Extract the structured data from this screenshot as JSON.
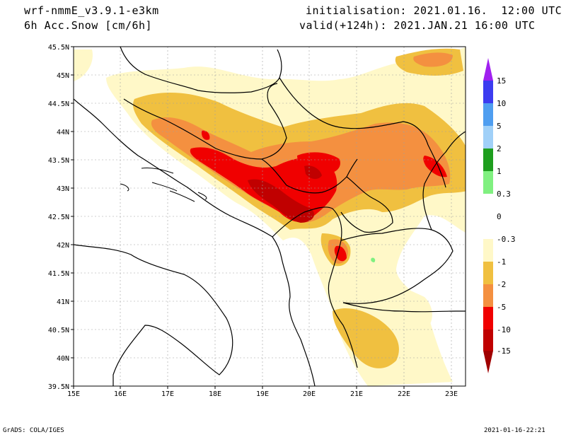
{
  "header": {
    "model": "wrf-nmmE_v3.9.1-e3km",
    "variable": "6h Acc.Snow [cm/6h]",
    "init": "initialisation: 2021.01.16.  12:00 UTC",
    "valid": "valid(+124h): 2021.JAN.21 16:00 UTC"
  },
  "footer": {
    "left": "GrADS: COLA/IGES",
    "right": "2021-01-16-22:21"
  },
  "map": {
    "lon_labels": [
      "15E",
      "16E",
      "17E",
      "18E",
      "19E",
      "20E",
      "21E",
      "22E",
      "23E"
    ],
    "lat_labels": [
      "39.5N",
      "40N",
      "40.5N",
      "41N",
      "41.5N",
      "42N",
      "42.5N",
      "43N",
      "43.5N",
      "44N",
      "44.5N",
      "45N",
      "45.5N"
    ],
    "lon_range": [
      15,
      23.3
    ],
    "lat_range": [
      39.5,
      45.5
    ],
    "grid": true
  },
  "colorbar": {
    "labels": [
      "15",
      "10",
      "5",
      "2",
      "1",
      "0.3",
      "0",
      "-0.3",
      "-1",
      "-2",
      "-5",
      "-10",
      "-15"
    ],
    "colors": [
      "#a020f0",
      "#3c3cf0",
      "#4f9ef0",
      "#a0d0f8",
      "#1e9e1e",
      "#80f080",
      "#ffffff",
      "#fff8c8",
      "#f0c040",
      "#f49040",
      "#f00000",
      "#c00000",
      "#a00000"
    ]
  }
}
